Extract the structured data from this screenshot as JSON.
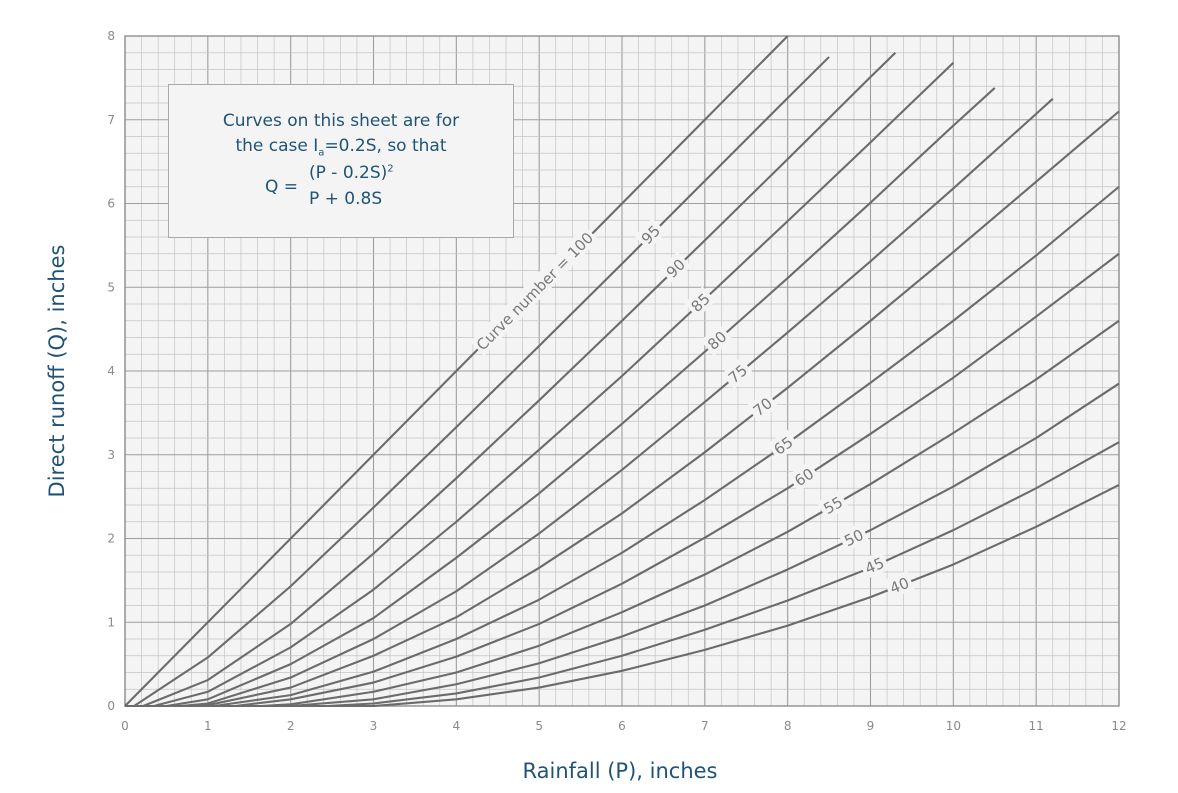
{
  "chart_data": {
    "type": "line",
    "xlabel": "Rainfall (P), inches",
    "ylabel": "Direct runoff (Q), inches",
    "xlim": [
      0,
      12
    ],
    "ylim": [
      0,
      8
    ],
    "x_ticks": [
      0,
      1,
      2,
      3,
      4,
      5,
      6,
      7,
      8,
      9,
      10,
      11,
      12
    ],
    "y_ticks": [
      0,
      1,
      2,
      3,
      4,
      5,
      6,
      7,
      8
    ],
    "grid": true,
    "minor_gridlines_per_unit": 5,
    "series_label_prefix": "Curve number = ",
    "series": [
      {
        "name": "100",
        "label": "100",
        "x": [
          0,
          8
        ],
        "y": [
          0,
          8
        ]
      },
      {
        "name": "95",
        "label": "95",
        "x": [
          0,
          0.11,
          1,
          2,
          3,
          4,
          5,
          6,
          7,
          8,
          8.5
        ],
        "y": [
          0,
          0,
          0.58,
          1.43,
          2.37,
          3.33,
          4.3,
          5.28,
          6.27,
          7.26,
          7.75
        ]
      },
      {
        "name": "90",
        "label": "90",
        "x": [
          0,
          0.22,
          1,
          2,
          3,
          4,
          5,
          6,
          7,
          8,
          9,
          9.3
        ],
        "y": [
          0,
          0,
          0.31,
          0.98,
          1.82,
          2.72,
          3.65,
          4.6,
          5.56,
          6.53,
          7.51,
          7.8
        ]
      },
      {
        "name": "85",
        "label": "85",
        "x": [
          0,
          0.35,
          1,
          2,
          3,
          4,
          5,
          6,
          7,
          8,
          9,
          10
        ],
        "y": [
          0,
          0,
          0.17,
          0.7,
          1.39,
          2.2,
          3.06,
          3.94,
          4.86,
          5.79,
          6.73,
          7.68
        ]
      },
      {
        "name": "80",
        "label": "80",
        "x": [
          0,
          0.5,
          1,
          2,
          3,
          4,
          5,
          6,
          7,
          8,
          9,
          10,
          10.5
        ],
        "y": [
          0,
          0,
          0.08,
          0.5,
          1.05,
          1.77,
          2.54,
          3.37,
          4.23,
          5.11,
          6.01,
          6.93,
          7.38
        ]
      },
      {
        "name": "75",
        "label": "75",
        "x": [
          0,
          0.67,
          1,
          2,
          3,
          4,
          5,
          6,
          7,
          8,
          9,
          10,
          11,
          11.2
        ],
        "y": [
          0,
          0,
          0.03,
          0.34,
          0.8,
          1.37,
          2.06,
          2.82,
          3.63,
          4.46,
          5.31,
          6.18,
          7.07,
          7.25
        ]
      },
      {
        "name": "70",
        "label": "70",
        "x": [
          0,
          0.86,
          1,
          2,
          3,
          4,
          5,
          6,
          7,
          8,
          9,
          10,
          11,
          12
        ],
        "y": [
          0,
          0,
          0.01,
          0.22,
          0.6,
          1.06,
          1.65,
          2.3,
          3.03,
          3.8,
          4.6,
          5.42,
          6.26,
          7.1
        ]
      },
      {
        "name": "65",
        "label": "65",
        "x": [
          0,
          1.08,
          2,
          3,
          4,
          5,
          6,
          7,
          8,
          9,
          10,
          11,
          12
        ],
        "y": [
          0,
          0,
          0.13,
          0.41,
          0.8,
          1.27,
          1.83,
          2.46,
          3.14,
          3.86,
          4.6,
          5.38,
          6.2
        ]
      },
      {
        "name": "60",
        "label": "60",
        "x": [
          0,
          1.33,
          2,
          3,
          4,
          5,
          6,
          7,
          8,
          9,
          10,
          11,
          12
        ],
        "y": [
          0,
          0,
          0.08,
          0.28,
          0.59,
          0.98,
          1.46,
          2.01,
          2.6,
          3.25,
          3.92,
          4.65,
          5.4
        ]
      },
      {
        "name": "55",
        "label": "55",
        "x": [
          0,
          1.64,
          2,
          3,
          4,
          5,
          6,
          7,
          8,
          9,
          10,
          11,
          12
        ],
        "y": [
          0,
          0,
          0.02,
          0.17,
          0.4,
          0.72,
          1.12,
          1.57,
          2.08,
          2.65,
          3.26,
          3.9,
          4.6
        ]
      },
      {
        "name": "50",
        "label": "50",
        "x": [
          0,
          2,
          3,
          4,
          5,
          6,
          7,
          8,
          9,
          10,
          11,
          12
        ],
        "y": [
          0,
          0,
          0.08,
          0.26,
          0.51,
          0.83,
          1.2,
          1.63,
          2.1,
          2.62,
          3.2,
          3.85
        ]
      },
      {
        "name": "45",
        "label": "45",
        "x": [
          0,
          2.44,
          3,
          4,
          5,
          6,
          7,
          8,
          9,
          10,
          11,
          12
        ],
        "y": [
          0,
          0,
          0.03,
          0.15,
          0.34,
          0.6,
          0.91,
          1.26,
          1.65,
          2.1,
          2.6,
          3.15
        ]
      },
      {
        "name": "40",
        "label": "40",
        "x": [
          0,
          3,
          4,
          5,
          6,
          7,
          8,
          9,
          10,
          11,
          12
        ],
        "y": [
          0,
          0,
          0.08,
          0.22,
          0.42,
          0.67,
          0.96,
          1.3,
          1.69,
          2.14,
          2.64
        ]
      }
    ]
  },
  "note": {
    "line1": "Curves on this sheet are for",
    "line2_prefix": "the case I",
    "line2_sub": "a",
    "line2_suffix": "=0.2S, so that",
    "eq_lhs": "Q =",
    "eq_numerator": "(P - 0.2S)",
    "eq_numerator_sup": "2",
    "eq_denominator": "P + 0.8S"
  }
}
